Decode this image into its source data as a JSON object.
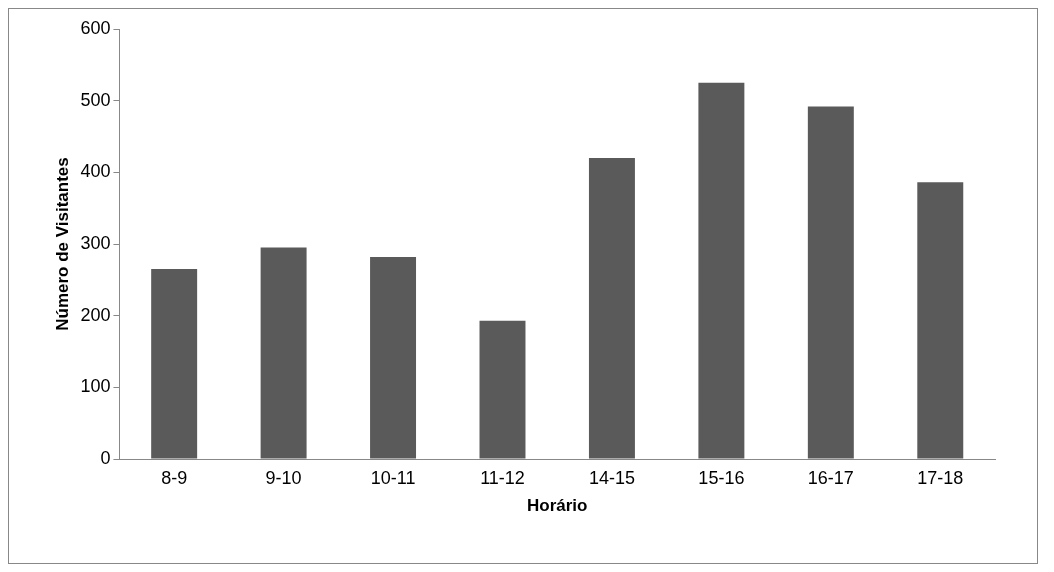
{
  "chart_data": {
    "type": "bar",
    "xlabel": "Horário",
    "ylabel": "Número de Visitantes",
    "categories": [
      "8-9",
      "9-10",
      "10-11",
      "11-12",
      "14-15",
      "15-16",
      "16-17",
      "17-18"
    ],
    "values": [
      265,
      295,
      282,
      193,
      420,
      525,
      492,
      386
    ],
    "color": "#5a5a5a",
    "ylim": [
      0,
      600
    ],
    "yticks": [
      0,
      100,
      200,
      300,
      400,
      500,
      600
    ],
    "grid": false,
    "legend": false
  }
}
